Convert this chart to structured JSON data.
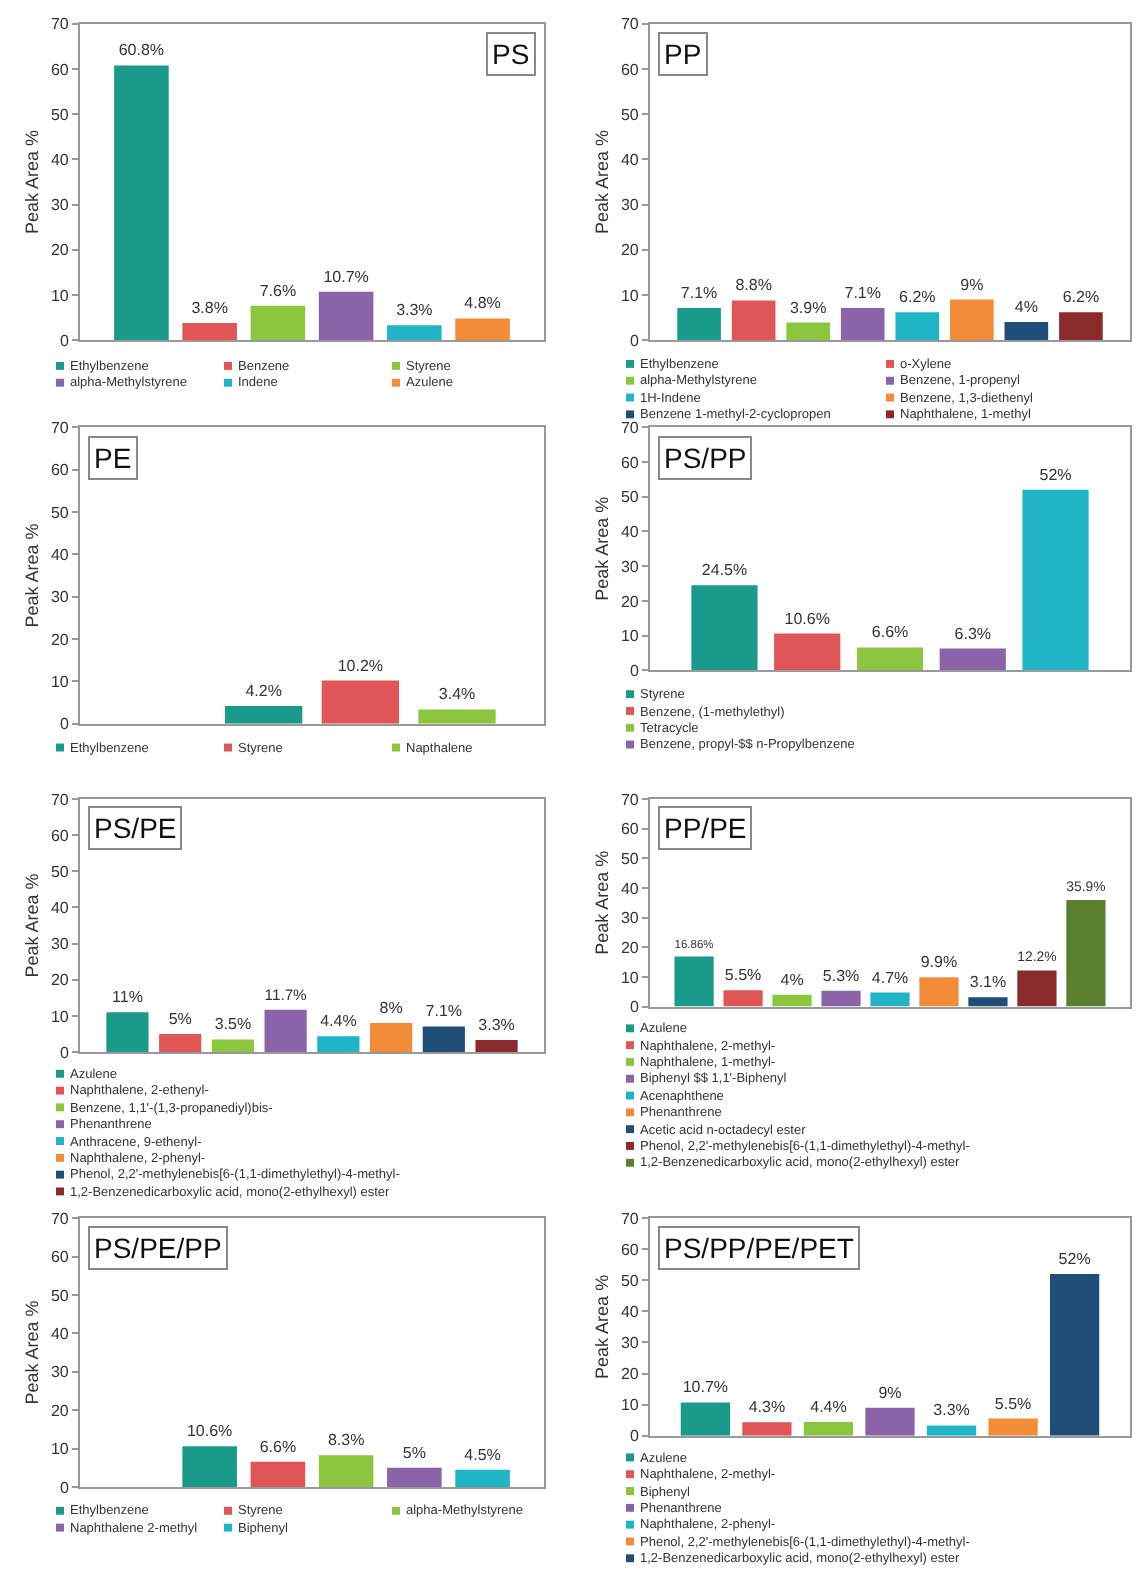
{
  "chart_data": [
    {
      "type": "bar",
      "title": "PS",
      "ylabel": "Peak Area %",
      "categories": [
        null,
        null,
        null,
        null,
        null,
        null
      ],
      "ylim": [
        0,
        70
      ],
      "yticks": [
        0,
        10,
        20,
        30,
        40,
        50,
        60,
        70
      ],
      "grid": false,
      "legend": "bottom",
      "series": [
        {
          "name": "Ethylbenzene",
          "color": "#1a9a8a",
          "values": [
            60.8,
            null,
            null,
            null,
            null,
            null
          ],
          "value_labels": [
            "60.8%",
            null,
            null,
            null,
            null,
            null
          ]
        },
        {
          "name": "Benzene",
          "color": "#e05555",
          "values": [
            null,
            3.8,
            null,
            null,
            null,
            null
          ],
          "value_labels": [
            null,
            "3.8%",
            null,
            null,
            null,
            null
          ]
        },
        {
          "name": "Styrene",
          "color": "#8cc63f",
          "values": [
            null,
            null,
            7.6,
            null,
            null,
            null
          ],
          "value_labels": [
            null,
            null,
            "7.6%",
            null,
            null,
            null
          ]
        },
        {
          "name": "alpha-Methylstyrene",
          "color": "#8a63a8",
          "values": [
            null,
            null,
            null,
            10.7,
            null,
            null
          ],
          "value_labels": [
            null,
            null,
            null,
            "10.7%",
            null,
            null
          ]
        },
        {
          "name": "Indene",
          "color": "#1fb5c7",
          "values": [
            null,
            null,
            null,
            null,
            3.3,
            null
          ],
          "value_labels": [
            null,
            null,
            null,
            null,
            "3.3%",
            null
          ]
        },
        {
          "name": "Azulene",
          "color": "#f28c38",
          "values": [
            null,
            null,
            null,
            null,
            null,
            4.8
          ],
          "value_labels": [
            null,
            null,
            null,
            null,
            null,
            "4.8%"
          ]
        }
      ]
    },
    {
      "type": "bar",
      "title": "PP",
      "ylabel": "Peak Area %",
      "categories": [
        null,
        null,
        null,
        null,
        null,
        null,
        null,
        null
      ],
      "ylim": [
        0,
        70
      ],
      "yticks": [
        0,
        10,
        20,
        30,
        40,
        50,
        60,
        70
      ],
      "grid": false,
      "legend": "bottom",
      "series": [
        {
          "name": "Ethylbenzene",
          "color": "#1a9a8a",
          "values": [
            7.1,
            null,
            null,
            null,
            null,
            null,
            null,
            null
          ],
          "value_labels": [
            "7.1%",
            null,
            null,
            null,
            null,
            null,
            null,
            null
          ]
        },
        {
          "name": "o-Xylene",
          "color": "#e05555",
          "values": [
            null,
            8.8,
            null,
            null,
            null,
            null,
            null,
            null
          ],
          "value_labels": [
            null,
            "8.8%",
            null,
            null,
            null,
            null,
            null,
            null
          ]
        },
        {
          "name": "alpha-Methylstyrene",
          "color": "#8cc63f",
          "values": [
            null,
            null,
            3.9,
            null,
            null,
            null,
            null,
            null
          ],
          "value_labels": [
            null,
            null,
            "3.9%",
            null,
            null,
            null,
            null,
            null
          ]
        },
        {
          "name": "Benzene, 1-propenyl",
          "color": "#8a63a8",
          "values": [
            null,
            null,
            null,
            7.1,
            null,
            null,
            null,
            null
          ],
          "value_labels": [
            null,
            null,
            null,
            "7.1%",
            null,
            null,
            null,
            null
          ]
        },
        {
          "name": "1H-Indene",
          "color": "#1fb5c7",
          "values": [
            null,
            null,
            null,
            null,
            6.2,
            null,
            null,
            null
          ],
          "value_labels": [
            null,
            null,
            null,
            null,
            "6.2%",
            null,
            null,
            null
          ]
        },
        {
          "name": "Benzene, 1,3-diethenyl",
          "color": "#f28c38",
          "values": [
            null,
            null,
            null,
            null,
            null,
            9,
            null,
            null
          ],
          "value_labels": [
            null,
            null,
            null,
            null,
            null,
            "9%",
            null,
            null
          ]
        },
        {
          "name": "Benzene 1-methyl-2-cyclopropen",
          "color": "#1f4e79",
          "values": [
            null,
            null,
            null,
            null,
            null,
            null,
            4,
            null
          ],
          "value_labels": [
            null,
            null,
            null,
            null,
            null,
            null,
            "4%",
            null
          ]
        },
        {
          "name": "Naphthalene, 1-methyl",
          "color": "#8b2a2a",
          "values": [
            null,
            null,
            null,
            null,
            null,
            null,
            null,
            6.2
          ],
          "value_labels": [
            null,
            null,
            null,
            null,
            null,
            null,
            null,
            "6.2%"
          ]
        }
      ]
    },
    {
      "type": "bar",
      "title": "PE",
      "ylabel": "Peak Area %",
      "categories": [
        null,
        null,
        null,
        null
      ],
      "ylim": [
        0,
        70
      ],
      "yticks": [
        0,
        10,
        20,
        30,
        40,
        50,
        60,
        70
      ],
      "grid": false,
      "legend": "bottom",
      "series": [
        {
          "name": "Ethylbenzene",
          "color": "#1a9a8a",
          "values": [
            null,
            4.2,
            null,
            null
          ],
          "value_labels": [
            null,
            "4.2%",
            null,
            null
          ]
        },
        {
          "name": "Styrene",
          "color": "#e05555",
          "values": [
            null,
            null,
            10.2,
            null
          ],
          "value_labels": [
            null,
            null,
            "10.2%",
            null
          ]
        },
        {
          "name": "Napthalene",
          "color": "#8cc63f",
          "values": [
            null,
            null,
            null,
            3.4
          ],
          "value_labels": [
            null,
            null,
            null,
            "3.4%"
          ]
        }
      ]
    },
    {
      "type": "bar",
      "title": "PS/PP",
      "ylabel": "Peak Area %",
      "categories": [
        null,
        null,
        null,
        null,
        null
      ],
      "ylim": [
        0,
        70
      ],
      "yticks": [
        0,
        10,
        20,
        30,
        40,
        50,
        60,
        70
      ],
      "grid": false,
      "legend": "bottom",
      "series": [
        {
          "name": "Styrene",
          "color": "#1a9a8a",
          "values": [
            24.5,
            null,
            null,
            null,
            null
          ],
          "value_labels": [
            "24.5%",
            null,
            null,
            null,
            null
          ]
        },
        {
          "name": "Benzene, (1-methylethyl)",
          "color": "#e05555",
          "values": [
            null,
            10.6,
            null,
            null,
            null
          ],
          "value_labels": [
            null,
            "10.6%",
            null,
            null,
            null
          ]
        },
        {
          "name": "Tetracycle",
          "color": "#8cc63f",
          "values": [
            null,
            null,
            6.6,
            null,
            null
          ],
          "value_labels": [
            null,
            null,
            "6.6%",
            null,
            null
          ]
        },
        {
          "name": "Benzene, propyl-$$ n-Propylbenzene",
          "color": "#8a63a8",
          "values": [
            null,
            null,
            null,
            6.3,
            null
          ],
          "value_labels": [
            null,
            null,
            null,
            "6.3%",
            null
          ]
        },
        {
          "color": "#1fb5c7",
          "values": [
            null,
            null,
            null,
            null,
            52
          ],
          "value_labels": [
            null,
            null,
            null,
            null,
            "52%"
          ]
        }
      ]
    },
    {
      "type": "bar",
      "title": "PS/PE",
      "ylabel": "Peak Area %",
      "categories": [
        null,
        null,
        null,
        null,
        null,
        null,
        null,
        null
      ],
      "ylim": [
        0,
        70
      ],
      "yticks": [
        0,
        10,
        20,
        30,
        40,
        50,
        60,
        70
      ],
      "grid": false,
      "legend": "bottom",
      "series": [
        {
          "name": "Azulene",
          "color": "#1a9a8a",
          "values": [
            11,
            null,
            null,
            null,
            null,
            null,
            null,
            null
          ],
          "value_labels": [
            "11%",
            null,
            null,
            null,
            null,
            null,
            null,
            null
          ]
        },
        {
          "name": "Naphthalene, 2-ethenyl-",
          "color": "#e05555",
          "values": [
            null,
            5,
            null,
            null,
            null,
            null,
            null,
            null
          ],
          "value_labels": [
            null,
            "5%",
            null,
            null,
            null,
            null,
            null,
            null
          ]
        },
        {
          "name": "Benzene, 1,1'-(1,3-propanediyl)bis-",
          "color": "#8cc63f",
          "values": [
            null,
            null,
            3.5,
            null,
            null,
            null,
            null,
            null
          ],
          "value_labels": [
            null,
            null,
            "3.5%",
            null,
            null,
            null,
            null,
            null
          ]
        },
        {
          "name": "Phenanthrene",
          "color": "#8a63a8",
          "values": [
            null,
            null,
            null,
            11.7,
            null,
            null,
            null,
            null
          ],
          "value_labels": [
            null,
            null,
            null,
            "11.7%",
            null,
            null,
            null,
            null
          ]
        },
        {
          "name": "Anthracene, 9-ethenyl-",
          "color": "#1fb5c7",
          "values": [
            null,
            null,
            null,
            null,
            4.4,
            null,
            null,
            null
          ],
          "value_labels": [
            null,
            null,
            null,
            null,
            "4.4%",
            null,
            null,
            null
          ]
        },
        {
          "name": "Naphthalene, 2-phenyl-",
          "color": "#f28c38",
          "values": [
            null,
            null,
            null,
            null,
            null,
            8,
            null,
            null
          ],
          "value_labels": [
            null,
            null,
            null,
            null,
            null,
            "8%",
            null,
            null
          ]
        },
        {
          "name": "Phenol, 2,2'-methylenebis[6-(1,1-dimethylethyl)-4-methyl-",
          "color": "#1f4e79",
          "values": [
            null,
            null,
            null,
            null,
            null,
            null,
            7.1,
            null
          ],
          "value_labels": [
            null,
            null,
            null,
            null,
            null,
            null,
            "7.1%",
            null
          ]
        },
        {
          "name": "1,2-Benzenedicarboxylic acid, mono(2-ethylhexyl) ester",
          "color": "#8b2a2a",
          "values": [
            null,
            null,
            null,
            null,
            null,
            null,
            null,
            3.3
          ],
          "value_labels": [
            null,
            null,
            null,
            null,
            null,
            null,
            null,
            "3.3%"
          ]
        }
      ]
    },
    {
      "type": "bar",
      "title": "PP/PE",
      "ylabel": "Peak Area %",
      "categories": [
        null,
        null,
        null,
        null,
        null,
        null,
        null,
        null,
        null
      ],
      "ylim": [
        0,
        70
      ],
      "yticks": [
        0,
        10,
        20,
        30,
        40,
        50,
        60,
        70
      ],
      "grid": false,
      "legend": "bottom",
      "series": [
        {
          "name": "Azulene",
          "color": "#1a9a8a",
          "values": [
            16.86,
            null,
            null,
            null,
            null,
            null,
            null,
            null,
            null
          ],
          "value_labels": [
            "16.86%",
            null,
            null,
            null,
            null,
            null,
            null,
            null,
            null
          ]
        },
        {
          "name": "Naphthalene, 2-methyl-",
          "color": "#e05555",
          "values": [
            null,
            5.5,
            null,
            null,
            null,
            null,
            null,
            null,
            null
          ],
          "value_labels": [
            null,
            "5.5%",
            null,
            null,
            null,
            null,
            null,
            null,
            null
          ]
        },
        {
          "name": "Naphthalene, 1-methyl-",
          "color": "#8cc63f",
          "values": [
            null,
            null,
            4,
            null,
            null,
            null,
            null,
            null,
            null
          ],
          "value_labels": [
            null,
            null,
            "4%",
            null,
            null,
            null,
            null,
            null,
            null
          ]
        },
        {
          "name": "Biphenyl $$ 1,1'-Biphenyl",
          "color": "#8a63a8",
          "values": [
            null,
            null,
            null,
            5.3,
            null,
            null,
            null,
            null,
            null
          ],
          "value_labels": [
            null,
            null,
            null,
            "5.3%",
            null,
            null,
            null,
            null,
            null
          ]
        },
        {
          "name": "Acenaphthene",
          "color": "#1fb5c7",
          "values": [
            null,
            null,
            null,
            null,
            4.7,
            null,
            null,
            null,
            null
          ],
          "value_labels": [
            null,
            null,
            null,
            null,
            "4.7%",
            null,
            null,
            null,
            null
          ]
        },
        {
          "name": "Phenanthrene",
          "color": "#f28c38",
          "values": [
            null,
            null,
            null,
            null,
            null,
            9.9,
            null,
            null,
            null
          ],
          "value_labels": [
            null,
            null,
            null,
            null,
            null,
            "9.9%",
            null,
            null,
            null
          ]
        },
        {
          "name": "Acetic acid n-octadecyl ester",
          "color": "#1f4e79",
          "values": [
            null,
            null,
            null,
            null,
            null,
            null,
            3.1,
            null,
            null
          ],
          "value_labels": [
            null,
            null,
            null,
            null,
            null,
            null,
            "3.1%",
            null,
            null
          ]
        },
        {
          "name": "Phenol, 2,2'-methylenebis[6-(1,1-dimethylethyl)-4-methyl-",
          "color": "#8b2a2a",
          "values": [
            null,
            null,
            null,
            null,
            null,
            null,
            null,
            12.2,
            null
          ],
          "value_labels": [
            null,
            null,
            null,
            null,
            null,
            null,
            null,
            "12.2%",
            null
          ]
        },
        {
          "name": "1,2-Benzenedicarboxylic acid, mono(2-ethylhexyl) ester",
          "color": "#5a7f2e",
          "values": [
            null,
            null,
            null,
            null,
            null,
            null,
            null,
            null,
            35.9
          ],
          "value_labels": [
            null,
            null,
            null,
            null,
            null,
            null,
            null,
            null,
            "35.9%"
          ]
        }
      ]
    },
    {
      "type": "bar",
      "title": "PS/PE/PP",
      "ylabel": "Peak Area %",
      "categories": [
        null,
        null,
        null,
        null,
        null,
        null
      ],
      "ylim": [
        0,
        70
      ],
      "yticks": [
        0,
        10,
        20,
        30,
        40,
        50,
        60,
        70
      ],
      "grid": false,
      "legend": "bottom",
      "series": [
        {
          "name": "Ethylbenzene",
          "color": "#1a9a8a",
          "values": [
            null,
            10.6,
            null,
            null,
            null,
            null
          ],
          "value_labels": [
            null,
            "10.6%",
            null,
            null,
            null,
            null
          ]
        },
        {
          "name": "Styrene",
          "color": "#e05555",
          "values": [
            null,
            null,
            6.6,
            null,
            null,
            null
          ],
          "value_labels": [
            null,
            null,
            "6.6%",
            null,
            null,
            null
          ]
        },
        {
          "name": "alpha-Methylstyrene",
          "color": "#8cc63f",
          "values": [
            null,
            null,
            null,
            8.3,
            null,
            null
          ],
          "value_labels": [
            null,
            null,
            null,
            "8.3%",
            null,
            null
          ]
        },
        {
          "name": "Naphthalene 2-methyl",
          "color": "#8a63a8",
          "values": [
            null,
            null,
            null,
            null,
            5,
            null
          ],
          "value_labels": [
            null,
            null,
            null,
            null,
            "5%",
            null
          ]
        },
        {
          "name": "Biphenyl",
          "color": "#1fb5c7",
          "values": [
            null,
            null,
            null,
            null,
            null,
            4.5
          ],
          "value_labels": [
            null,
            null,
            null,
            null,
            null,
            "4.5%"
          ]
        }
      ]
    },
    {
      "type": "bar",
      "title": "PS/PP/PE/PET",
      "ylabel": "Peak Area %",
      "categories": [
        null,
        null,
        null,
        null,
        null,
        null,
        null
      ],
      "ylim": [
        0,
        70
      ],
      "yticks": [
        0,
        10,
        20,
        30,
        40,
        50,
        60,
        70
      ],
      "grid": false,
      "legend": "bottom",
      "series": [
        {
          "name": "Azulene",
          "color": "#1a9a8a",
          "values": [
            10.7,
            null,
            null,
            null,
            null,
            null,
            null
          ],
          "value_labels": [
            "10.7%",
            null,
            null,
            null,
            null,
            null,
            null
          ]
        },
        {
          "name": "Naphthalene, 2-methyl-",
          "color": "#e05555",
          "values": [
            null,
            4.3,
            null,
            null,
            null,
            null,
            null
          ],
          "value_labels": [
            null,
            "4.3%",
            null,
            null,
            null,
            null,
            null
          ]
        },
        {
          "name": "Biphenyl",
          "color": "#8cc63f",
          "values": [
            null,
            null,
            4.4,
            null,
            null,
            null,
            null
          ],
          "value_labels": [
            null,
            null,
            "4.4%",
            null,
            null,
            null,
            null
          ]
        },
        {
          "name": "Phenanthrene",
          "color": "#8a63a8",
          "values": [
            null,
            null,
            null,
            9,
            null,
            null,
            null
          ],
          "value_labels": [
            null,
            null,
            null,
            "9%",
            null,
            null,
            null
          ]
        },
        {
          "name": "Naphthalene, 2-phenyl-",
          "color": "#1fb5c7",
          "values": [
            null,
            null,
            null,
            null,
            3.3,
            null,
            null
          ],
          "value_labels": [
            null,
            null,
            null,
            null,
            "3.3%",
            null,
            null
          ]
        },
        {
          "name": "Phenol, 2,2'-methylenebis[6-(1,1-dimethylethyl)-4-methyl-",
          "color": "#f28c38",
          "values": [
            null,
            null,
            null,
            null,
            null,
            5.5,
            null
          ],
          "value_labels": [
            null,
            null,
            null,
            null,
            null,
            "5.5%",
            null
          ]
        },
        {
          "name": "1,2-Benzenedicarboxylic acid, mono(2-ethylhexyl) ester",
          "color": "#1f4e79",
          "values": [
            null,
            null,
            null,
            null,
            null,
            null,
            52
          ],
          "value_labels": [
            null,
            null,
            null,
            null,
            null,
            null,
            "52%"
          ]
        }
      ]
    }
  ]
}
